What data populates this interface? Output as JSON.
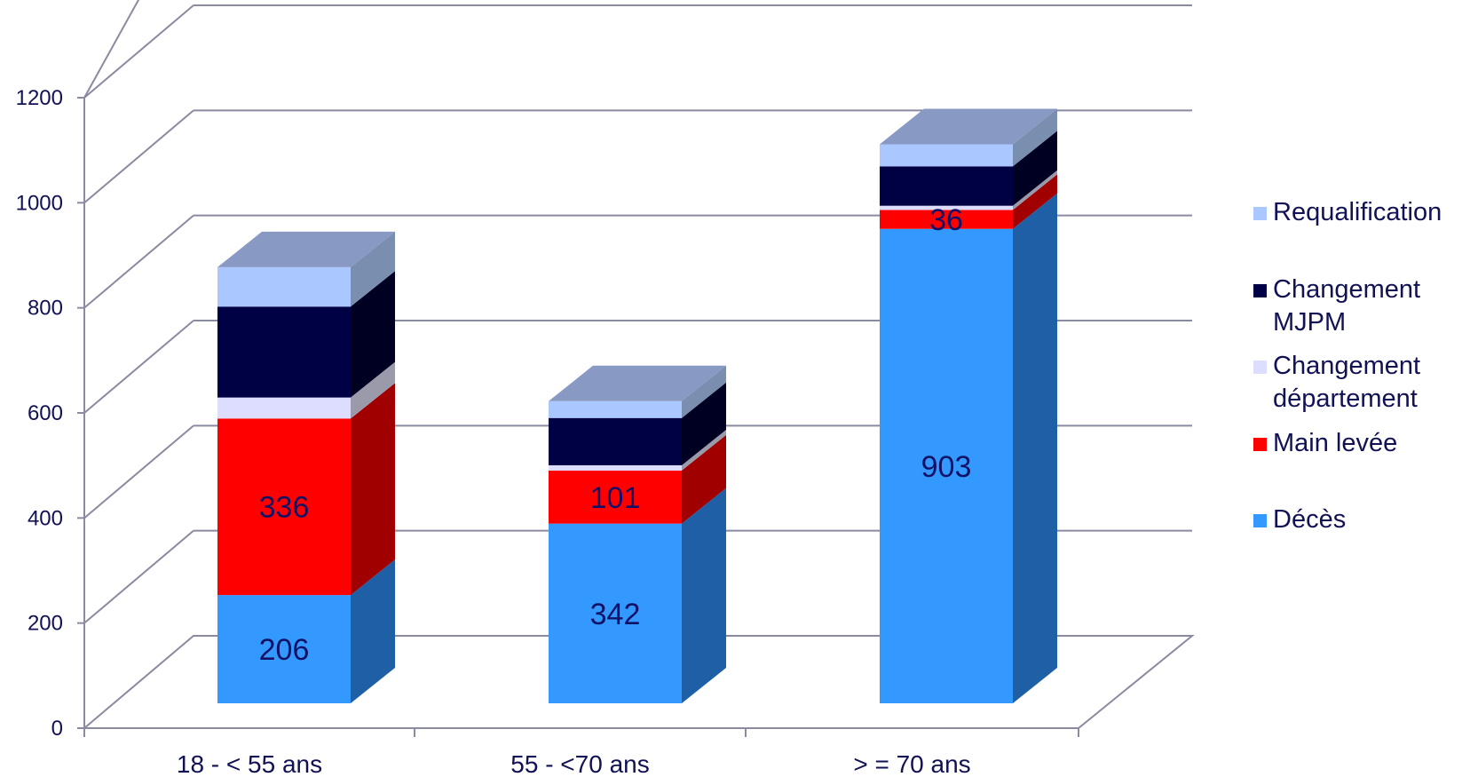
{
  "chart_data": {
    "type": "bar",
    "stacked": true,
    "three_d": true,
    "categories": [
      "18 - < 55 ans",
      "55 - <70 ans",
      "> = 70 ans"
    ],
    "ylim": [
      0,
      1200
    ],
    "yticks": [
      0,
      200,
      400,
      600,
      800,
      1000,
      1200
    ],
    "grid": true,
    "legend_position": "right",
    "series": [
      {
        "name": "Décès",
        "values": [
          206,
          342,
          903
        ],
        "color": "#3399FF",
        "side_color": "#1F5FA6",
        "show_labels": true
      },
      {
        "name": "Main levée",
        "values": [
          336,
          101,
          36
        ],
        "color": "#FF0000",
        "side_color": "#A00000",
        "show_labels": true
      },
      {
        "name": "Changement département",
        "values": [
          40,
          10,
          8
        ],
        "color": "#DDDDFF",
        "side_color": "#9A9AAA",
        "show_labels": false
      },
      {
        "name": "Changement MJPM",
        "values": [
          173,
          90,
          75
        ],
        "color": "#000044",
        "side_color": "#000022",
        "show_labels": false
      },
      {
        "name": "Requalification",
        "values": [
          75,
          32,
          42
        ],
        "color": "#AAC8FF",
        "side_color": "#7A8FB0",
        "show_labels": false
      }
    ],
    "legend_order": [
      {
        "lines": [
          "Requalification"
        ],
        "series": 4
      },
      {
        "lines": [
          "Changement",
          "MJPM"
        ],
        "series": 3
      },
      {
        "lines": [
          "Changement",
          "département"
        ],
        "series": 2
      },
      {
        "lines": [
          "Main levée"
        ],
        "series": 1
      },
      {
        "lines": [
          "Décès"
        ],
        "series": 0
      }
    ],
    "top_cap_color": "#8899C4",
    "grid_color": "#8A8AA0"
  }
}
